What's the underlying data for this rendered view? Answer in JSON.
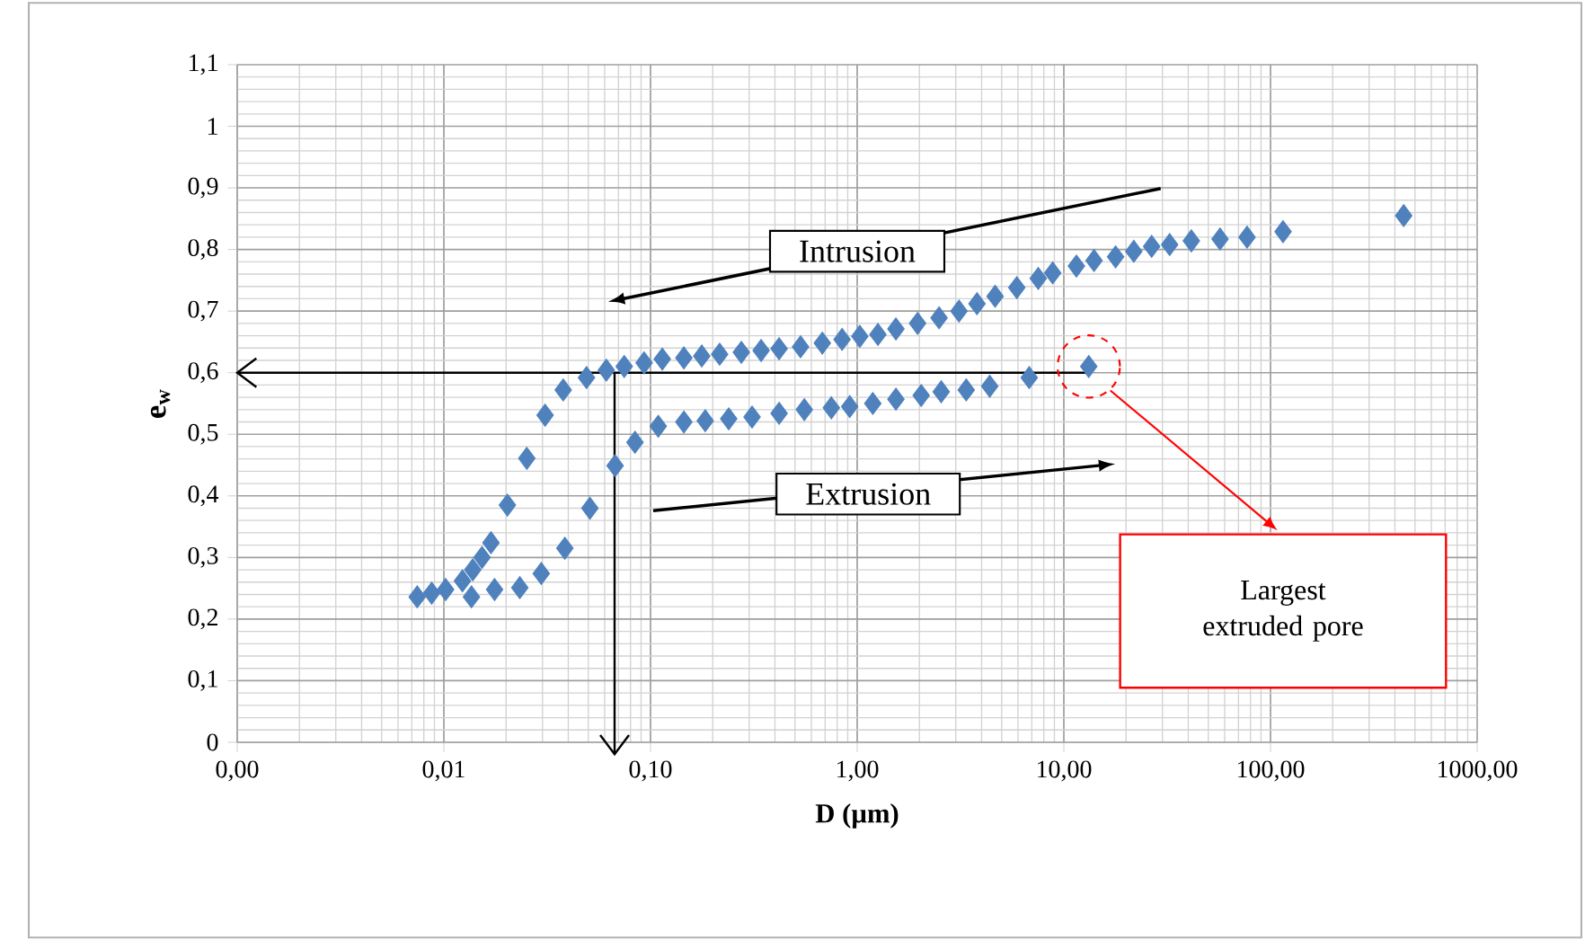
{
  "chart_data": {
    "type": "scatter",
    "xlabel": "D (µm)",
    "ylabel": "e$_{w}$",
    "log": "x",
    "grid": true,
    "marker": "diamond",
    "xlim": [
      0.001,
      1000
    ],
    "ylim": [
      0,
      1.1
    ],
    "xticks": [
      {
        "value": 0.001,
        "label": "0,00"
      },
      {
        "value": 0.01,
        "label": "0,01"
      },
      {
        "value": 0.1,
        "label": "0,10"
      },
      {
        "value": 1,
        "label": "1,00"
      },
      {
        "value": 10,
        "label": "10,00"
      },
      {
        "value": 100,
        "label": "100,00"
      },
      {
        "value": 1000,
        "label": "1000,00"
      }
    ],
    "yticks": [
      0,
      {
        "value": 0.1,
        "label": "0,1"
      },
      {
        "value": 0.2,
        "label": "0,2"
      },
      {
        "value": 0.3,
        "label": "0,3"
      },
      {
        "value": 0.4,
        "label": "0,4"
      },
      {
        "value": 0.5,
        "label": "0,5"
      },
      {
        "value": 0.6,
        "label": "0,6"
      },
      {
        "value": 0.7,
        "label": "0,7"
      },
      {
        "value": 0.8,
        "label": "0,8"
      },
      {
        "value": 0.9,
        "label": "0,9"
      },
      1,
      {
        "value": 1.1,
        "label": "1,1"
      }
    ],
    "series": [
      {
        "name": "Intrusion",
        "color": "#4f81bd",
        "x": [
          441,
          115,
          77,
          57,
          41.4,
          32.5,
          26.6,
          21.8,
          17.8,
          14.0,
          11.5,
          8.83,
          7.52,
          5.92,
          4.65,
          3.8,
          3.11,
          2.49,
          1.96,
          1.54,
          1.26,
          1.03,
          0.845,
          0.678,
          0.532,
          0.419,
          0.343,
          0.275,
          0.216,
          0.177,
          0.145,
          0.114,
          0.0931,
          0.0746,
          0.0611,
          0.049,
          0.0378,
          0.0309,
          0.0252,
          0.0203,
          0.0169,
          0.0153,
          0.0138,
          0.0123,
          0.0102,
          0.00873,
          0.00743
        ],
        "values": [
          0.855,
          0.829,
          0.82,
          0.817,
          0.814,
          0.808,
          0.805,
          0.797,
          0.788,
          0.782,
          0.773,
          0.762,
          0.753,
          0.738,
          0.724,
          0.712,
          0.7,
          0.689,
          0.68,
          0.671,
          0.662,
          0.659,
          0.654,
          0.648,
          0.642,
          0.639,
          0.636,
          0.633,
          0.63,
          0.627,
          0.624,
          0.622,
          0.616,
          0.61,
          0.604,
          0.592,
          0.572,
          0.531,
          0.461,
          0.385,
          0.324,
          0.3,
          0.28,
          0.262,
          0.248,
          0.242,
          0.236
        ]
      },
      {
        "name": "Extrusion",
        "color": "#4f81bd",
        "x": [
          0.0136,
          0.0176,
          0.0233,
          0.0296,
          0.0385,
          0.0509,
          0.0674,
          0.0841,
          0.109,
          0.145,
          0.184,
          0.239,
          0.31,
          0.419,
          0.555,
          0.75,
          0.92,
          1.19,
          1.54,
          2.04,
          2.55,
          3.37,
          4.38,
          6.8,
          13.2
        ],
        "values": [
          0.236,
          0.248,
          0.251,
          0.274,
          0.315,
          0.38,
          0.449,
          0.487,
          0.513,
          0.52,
          0.522,
          0.525,
          0.528,
          0.534,
          0.54,
          0.543,
          0.545,
          0.55,
          0.557,
          0.563,
          0.569,
          0.572,
          0.578,
          0.592,
          0.61
        ]
      }
    ],
    "ref_lines": [
      {
        "axis": "y",
        "value": 0.6,
        "color": "#000000"
      },
      {
        "axis": "x",
        "value": 0.067,
        "color": "#000000"
      }
    ],
    "annotations": [
      "Largest extruded pore"
    ]
  }
}
